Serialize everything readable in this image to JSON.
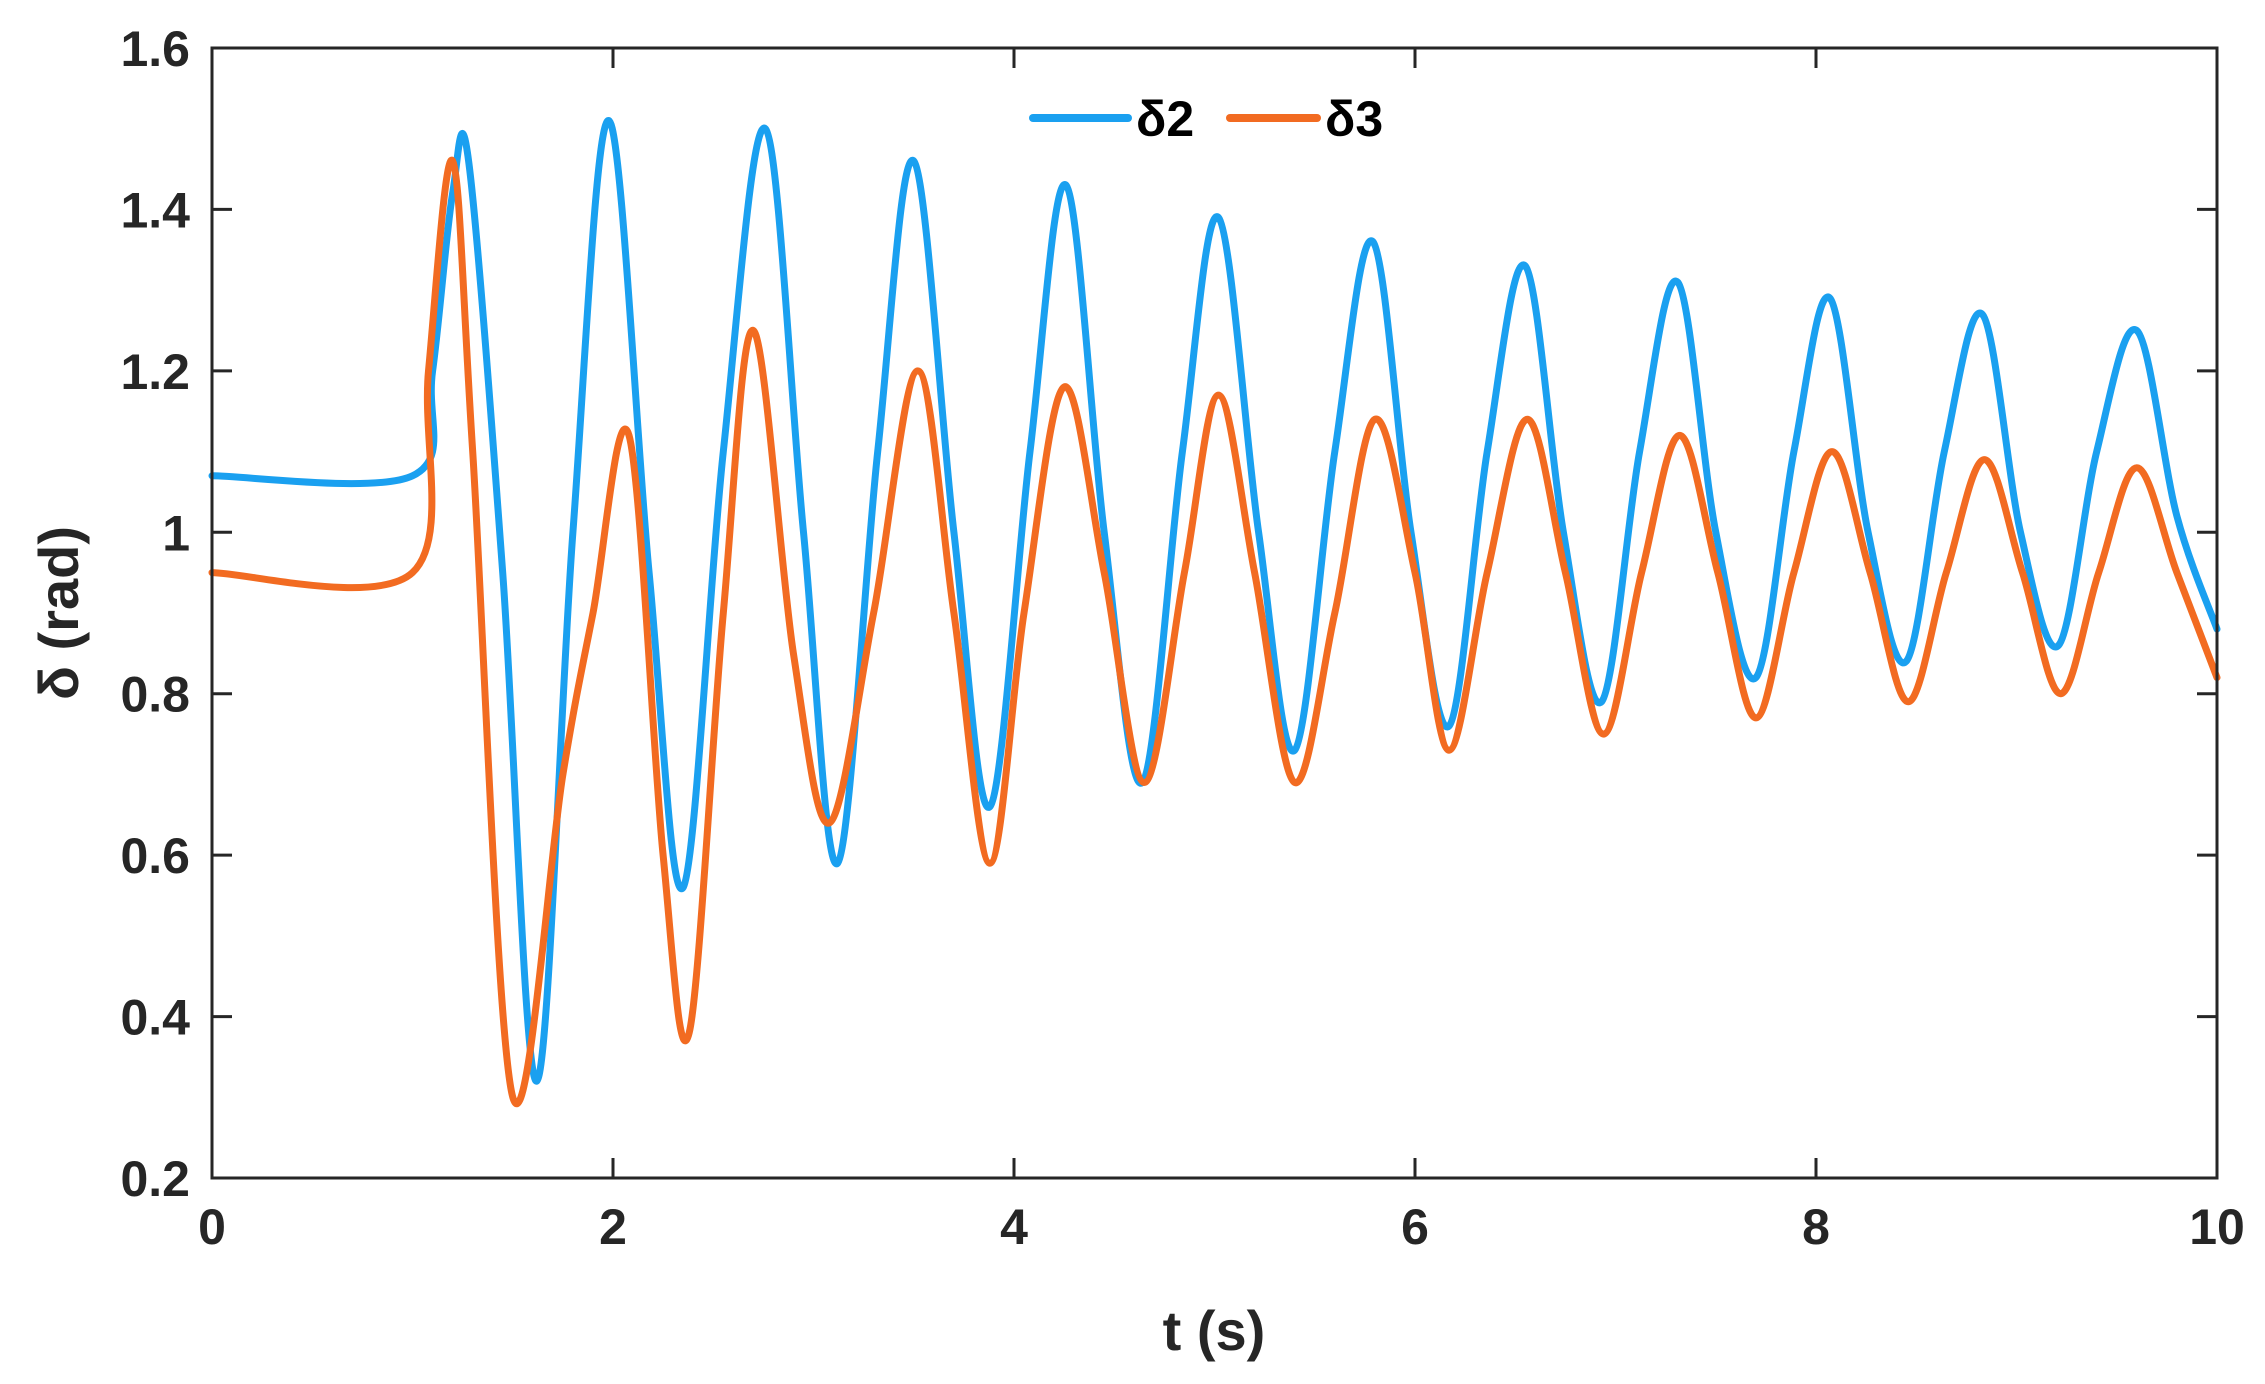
{
  "chart_data": {
    "type": "line",
    "title": "",
    "xlabel": "t (s)",
    "ylabel": "δ (rad)",
    "xlim": [
      0,
      10
    ],
    "ylim": [
      0.2,
      1.6
    ],
    "xticks": [
      0,
      2,
      4,
      6,
      8,
      10
    ],
    "yticks": [
      0.2,
      0.4,
      0.6,
      0.8,
      1,
      1.2,
      1.4,
      1.6
    ],
    "xtick_labels": [
      "0",
      "2",
      "4",
      "6",
      "8",
      "10"
    ],
    "ytick_labels": [
      "0.2",
      "0.4",
      "0.6",
      "0.8",
      "1",
      "1.2",
      "1.4",
      "1.6"
    ],
    "grid": false,
    "legend": {
      "placement": "top-center",
      "orientation": "horizontal"
    },
    "series": [
      {
        "name": "δ2",
        "color": "#1AA0F0",
        "x": [
          0,
          1.0,
          1.1,
          1.2,
          1.28,
          1.45,
          1.62,
          1.8,
          1.98,
          2.18,
          2.35,
          2.55,
          2.76,
          2.95,
          3.12,
          3.32,
          3.5,
          3.7,
          3.88,
          4.08,
          4.26,
          4.45,
          4.64,
          4.84,
          5.02,
          5.22,
          5.4,
          5.6,
          5.79,
          5.98,
          6.17,
          6.36,
          6.55,
          6.74,
          6.93,
          7.12,
          7.31,
          7.5,
          7.7,
          7.89,
          8.07,
          8.26,
          8.45,
          8.64,
          8.83,
          9.02,
          9.21,
          9.4,
          9.6,
          9.8,
          10.0
        ],
        "y": [
          1.07,
          1.07,
          1.2,
          1.42,
          1.46,
          0.95,
          0.32,
          1.0,
          1.51,
          0.95,
          0.56,
          1.1,
          1.5,
          1.0,
          0.59,
          1.1,
          1.46,
          1.0,
          0.66,
          1.1,
          1.43,
          1.0,
          0.69,
          1.1,
          1.39,
          1.0,
          0.73,
          1.1,
          1.36,
          1.0,
          0.76,
          1.1,
          1.33,
          1.0,
          0.79,
          1.1,
          1.31,
          1.0,
          0.82,
          1.1,
          1.29,
          1.0,
          0.84,
          1.1,
          1.27,
          1.0,
          0.86,
          1.1,
          1.25,
          1.02,
          0.88
        ]
      },
      {
        "name": "δ3",
        "color": "#F26B21",
        "x": [
          0,
          1.0,
          1.08,
          1.2,
          1.3,
          1.5,
          1.75,
          1.9,
          2.08,
          2.25,
          2.38,
          2.55,
          2.7,
          2.9,
          3.08,
          3.3,
          3.52,
          3.7,
          3.88,
          4.05,
          4.25,
          4.45,
          4.65,
          4.85,
          5.02,
          5.2,
          5.4,
          5.6,
          5.8,
          6.0,
          6.17,
          6.36,
          6.56,
          6.75,
          6.94,
          7.13,
          7.32,
          7.51,
          7.7,
          7.89,
          8.08,
          8.27,
          8.46,
          8.65,
          8.84,
          9.03,
          9.22,
          9.41,
          9.6,
          9.8,
          10.0
        ],
        "y": [
          0.95,
          0.95,
          1.2,
          1.46,
          1.1,
          0.3,
          0.7,
          0.9,
          1.12,
          0.6,
          0.38,
          0.9,
          1.25,
          0.85,
          0.64,
          0.9,
          1.2,
          0.9,
          0.59,
          0.9,
          1.18,
          0.95,
          0.69,
          0.95,
          1.17,
          0.95,
          0.69,
          0.9,
          1.14,
          0.95,
          0.73,
          0.95,
          1.14,
          0.95,
          0.75,
          0.95,
          1.12,
          0.95,
          0.77,
          0.95,
          1.1,
          0.95,
          0.79,
          0.95,
          1.09,
          0.95,
          0.8,
          0.95,
          1.08,
          0.95,
          0.82
        ]
      }
    ]
  }
}
